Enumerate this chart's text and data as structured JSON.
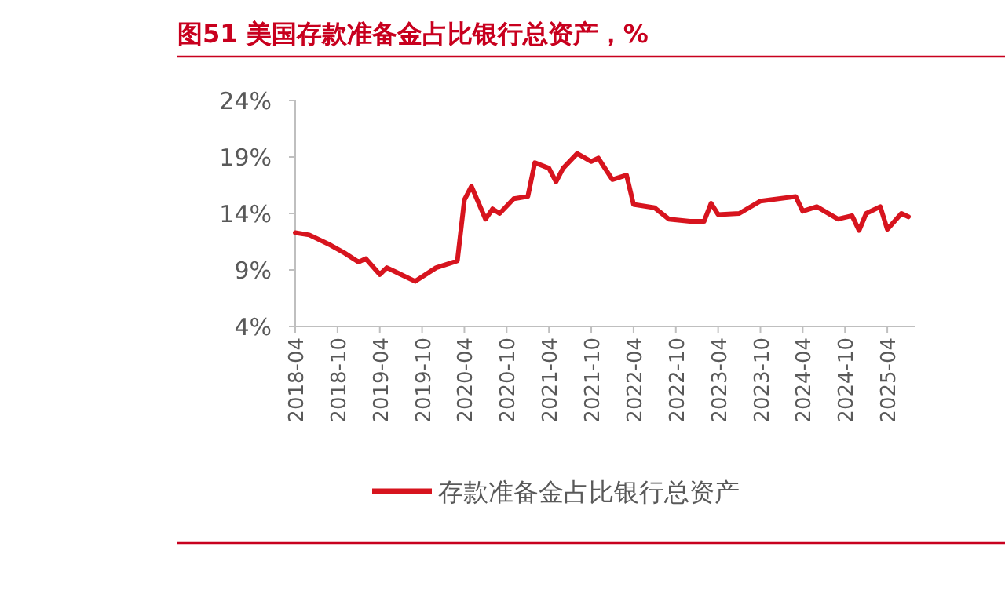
{
  "chart_data": {
    "type": "line",
    "title": "图51  美国存款准备金占比银行总资产，%",
    "x": [
      "2018-04",
      "2018-06",
      "2018-09",
      "2018-11",
      "2019-01",
      "2019-02",
      "2019-04",
      "2019-05",
      "2019-07",
      "2019-09",
      "2019-12",
      "2020-02",
      "2020-03",
      "2020-04",
      "2020-05",
      "2020-07",
      "2020-08",
      "2020-09",
      "2020-11",
      "2021-01",
      "2021-02",
      "2021-04",
      "2021-05",
      "2021-06",
      "2021-08",
      "2021-10",
      "2021-11",
      "2022-01",
      "2022-03",
      "2022-04",
      "2022-07",
      "2022-09",
      "2022-12",
      "2023-02",
      "2023-03",
      "2023-04",
      "2023-07",
      "2023-10",
      "2024-03",
      "2024-04",
      "2024-06",
      "2024-09",
      "2024-11",
      "2024-12",
      "2025-01",
      "2025-03",
      "2025-04",
      "2025-06",
      "2025-07"
    ],
    "series": [
      {
        "name": "存款准备金占比银行总资产",
        "color": "#d7141e",
        "values": [
          12.3,
          12.1,
          11.2,
          10.5,
          9.7,
          10.0,
          8.6,
          9.2,
          8.6,
          8.0,
          9.2,
          9.6,
          9.8,
          15.2,
          16.4,
          13.5,
          14.4,
          14.0,
          15.3,
          15.5,
          18.5,
          18.0,
          16.8,
          18.0,
          19.3,
          18.6,
          18.9,
          17.0,
          17.4,
          14.8,
          14.5,
          13.5,
          13.3,
          13.3,
          14.9,
          13.9,
          14.0,
          15.1,
          15.5,
          14.2,
          14.6,
          13.5,
          13.8,
          12.5,
          14.0,
          14.6,
          12.6,
          14.0,
          13.7
        ]
      }
    ],
    "xlim": [
      "2018-04",
      "2025-08"
    ],
    "ylim": [
      4,
      24
    ],
    "xticks": [
      "2018-04",
      "2018-10",
      "2019-04",
      "2019-10",
      "2020-04",
      "2020-10",
      "2021-04",
      "2021-10",
      "2022-04",
      "2022-10",
      "2023-04",
      "2023-10",
      "2024-04",
      "2024-10",
      "2025-04"
    ],
    "yticks": [
      {
        "value": 4,
        "label": "4%"
      },
      {
        "value": 9,
        "label": "9%"
      },
      {
        "value": 14,
        "label": "14%"
      },
      {
        "value": 19,
        "label": "19%"
      },
      {
        "value": 24,
        "label": "24%"
      }
    ],
    "legend": "bottom"
  }
}
